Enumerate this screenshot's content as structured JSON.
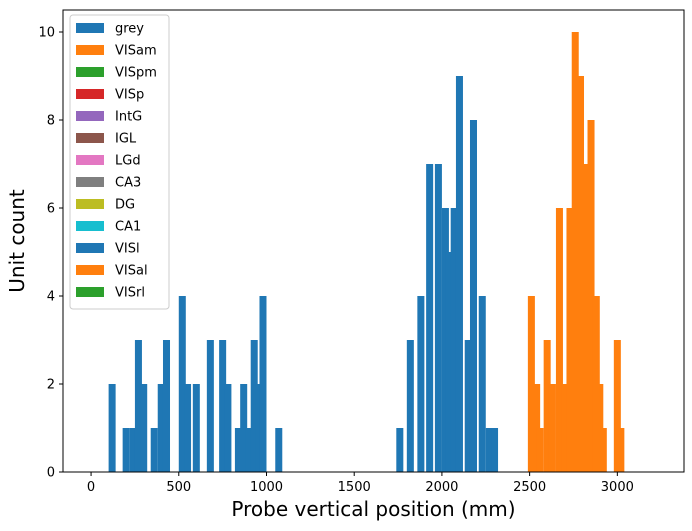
{
  "chart_data": {
    "type": "bar",
    "histogram": true,
    "xlabel": "Probe vertical position (mm)",
    "ylabel": "Unit count",
    "xlim": [
      -160,
      3380
    ],
    "ylim": [
      0,
      10.5
    ],
    "bin_width": 40,
    "xticks": [
      0,
      500,
      1000,
      1500,
      2000,
      2500,
      3000
    ],
    "yticks": [
      0,
      2,
      4,
      6,
      8,
      10
    ],
    "grid": false,
    "legend_position": "top-left",
    "legend": [
      {
        "name": "grey",
        "color": "#1f77b4"
      },
      {
        "name": "VISam",
        "color": "#ff7f0e"
      },
      {
        "name": "VISpm",
        "color": "#2ca02c"
      },
      {
        "name": "VISp",
        "color": "#d62728"
      },
      {
        "name": "IntG",
        "color": "#9467bd"
      },
      {
        "name": "IGL",
        "color": "#8c564b"
      },
      {
        "name": "LGd",
        "color": "#e377c2"
      },
      {
        "name": "CA3",
        "color": "#7f7f7f"
      },
      {
        "name": "DG",
        "color": "#bcbd22"
      },
      {
        "name": "CA1",
        "color": "#17becf"
      },
      {
        "name": "VISl",
        "color": "#1f77b4"
      },
      {
        "name": "VISal",
        "color": "#ff7f0e"
      },
      {
        "name": "VISrl",
        "color": "#2ca02c"
      }
    ],
    "series": [
      {
        "name": "grey",
        "color": "#1f77b4",
        "bins": [
          [
            100,
            2
          ],
          [
            180,
            1
          ],
          [
            220,
            1
          ],
          [
            250,
            3
          ],
          [
            280,
            2
          ],
          [
            340,
            1
          ],
          [
            380,
            2
          ],
          [
            410,
            3
          ],
          [
            500,
            4
          ],
          [
            530,
            2
          ],
          [
            580,
            2
          ],
          [
            660,
            3
          ],
          [
            730,
            3
          ],
          [
            760,
            2
          ],
          [
            820,
            1
          ],
          [
            850,
            2
          ],
          [
            880,
            1
          ],
          [
            910,
            3
          ],
          [
            940,
            2
          ],
          [
            960,
            4
          ],
          [
            1050,
            1
          ],
          [
            1740,
            1
          ],
          [
            1800,
            3
          ],
          [
            1860,
            4
          ],
          [
            1910,
            7
          ],
          [
            1960,
            7
          ],
          [
            2000,
            6
          ],
          [
            2020,
            5
          ],
          [
            2050,
            6
          ],
          [
            2080,
            9
          ],
          [
            2130,
            3
          ],
          [
            2160,
            8
          ],
          [
            2210,
            4
          ],
          [
            2250,
            1
          ],
          [
            2280,
            1
          ]
        ]
      },
      {
        "name": "VISam",
        "color": "#ff7f0e",
        "bins": [
          [
            2490,
            4
          ],
          [
            2520,
            2
          ],
          [
            2540,
            1
          ],
          [
            2580,
            3
          ],
          [
            2610,
            2
          ],
          [
            2650,
            6
          ],
          [
            2680,
            2
          ],
          [
            2710,
            6
          ],
          [
            2740,
            10
          ],
          [
            2770,
            9
          ],
          [
            2800,
            7
          ],
          [
            2830,
            8
          ],
          [
            2860,
            4
          ],
          [
            2880,
            2
          ],
          [
            2900,
            1
          ],
          [
            2980,
            3
          ],
          [
            3000,
            1
          ]
        ]
      }
    ]
  }
}
